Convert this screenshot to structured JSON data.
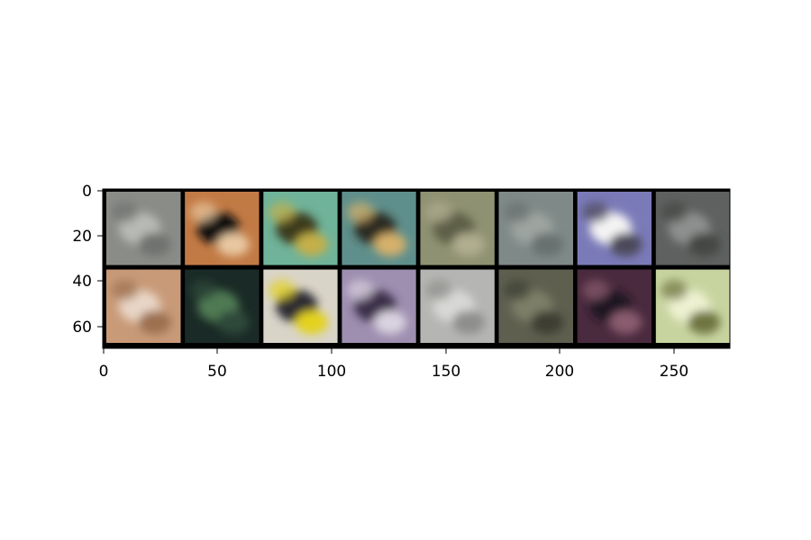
{
  "figure": {
    "x_tick_labels": [
      "0",
      "50",
      "100",
      "150",
      "200",
      "250"
    ],
    "y_tick_labels": [
      "0",
      "20",
      "40",
      "60"
    ],
    "grid_rows": 2,
    "grid_cols": 8,
    "border_color": "#000000",
    "tiles": [
      {
        "subject": "blurry grey object",
        "colors": [
          "#8a8c88",
          "#b8bab5",
          "#6f7270"
        ]
      },
      {
        "subject": "dog face close-up",
        "colors": [
          "#c27a45",
          "#111111",
          "#e8c7a0"
        ]
      },
      {
        "subject": "yellow object on teal",
        "colors": [
          "#6fb39a",
          "#3a3a1c",
          "#c4b04a"
        ]
      },
      {
        "subject": "cat face",
        "colors": [
          "#5f8f8c",
          "#2a2a22",
          "#d6b06a"
        ]
      },
      {
        "subject": "olive scene",
        "colors": [
          "#8f9272",
          "#5d5f46",
          "#b0ad90"
        ]
      },
      {
        "subject": "blurry grey-green",
        "colors": [
          "#7f8a88",
          "#9ea5a1",
          "#68716f"
        ]
      },
      {
        "subject": "purple sky animal",
        "colors": [
          "#7b7ab8",
          "#f4f4f4",
          "#4c4a5a"
        ]
      },
      {
        "subject": "dark grey object",
        "colors": [
          "#5e615f",
          "#8d908e",
          "#444745"
        ]
      },
      {
        "subject": "tan animal",
        "colors": [
          "#c89a78",
          "#e9d6c6",
          "#9c7050"
        ]
      },
      {
        "subject": "dark green scene",
        "colors": [
          "#1a2a26",
          "#4f7a52",
          "#2f4a3a"
        ]
      },
      {
        "subject": "bird with yellow",
        "colors": [
          "#d9d4c8",
          "#2a2a30",
          "#e3d21a"
        ]
      },
      {
        "subject": "purple animal",
        "colors": [
          "#9e8eb0",
          "#3a2f48",
          "#d9d3e0"
        ]
      },
      {
        "subject": "light grey blur",
        "colors": [
          "#b5b5b3",
          "#d8d8d6",
          "#8e8e8c"
        ]
      },
      {
        "subject": "dark olive object",
        "colors": [
          "#5e5f4f",
          "#7d7f67",
          "#3d3e33"
        ]
      },
      {
        "subject": "dark purple vehicle",
        "colors": [
          "#4a2a3e",
          "#1f1520",
          "#8a5b6e"
        ]
      },
      {
        "subject": "light green frog",
        "colors": [
          "#c8d4a0",
          "#eef2d2",
          "#6e7440"
        ]
      }
    ]
  }
}
